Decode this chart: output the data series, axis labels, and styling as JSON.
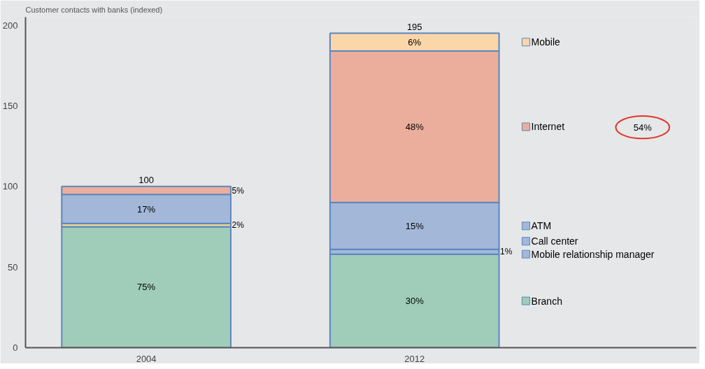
{
  "chart_data": {
    "type": "bar",
    "stacked": true,
    "title": "Customer contacts with banks (indexed)",
    "categories": [
      "2004",
      "2012"
    ],
    "series": [
      {
        "name": "Branch",
        "color": "#9fcdb9",
        "values": [
          75,
          58
        ]
      },
      {
        "name": "Mobile relationship manager",
        "color": "#a3b8d9",
        "values": [
          0,
          0
        ]
      },
      {
        "name": "Call center",
        "colors": [
          "#f4d88f",
          "#a3b8d9"
        ],
        "values": [
          2,
          3
        ]
      },
      {
        "name": "ATM",
        "color": "#a3b8d9",
        "values": [
          18,
          29
        ]
      },
      {
        "name": "Internet",
        "color": "#ecae9c",
        "values": [
          5,
          94
        ]
      },
      {
        "name": "Mobile",
        "color": "#fbd6a8",
        "values": [
          0,
          11
        ]
      }
    ],
    "totals": [
      "100",
      "195"
    ],
    "annotations": [
      "75%",
      "2%",
      "17%",
      "5%",
      "30%",
      "1%",
      "15%",
      "48%",
      "6%",
      "54%"
    ],
    "legend": "right",
    "ylim": [
      0,
      205
    ],
    "yticks": [
      0,
      50,
      100,
      150,
      200
    ]
  }
}
